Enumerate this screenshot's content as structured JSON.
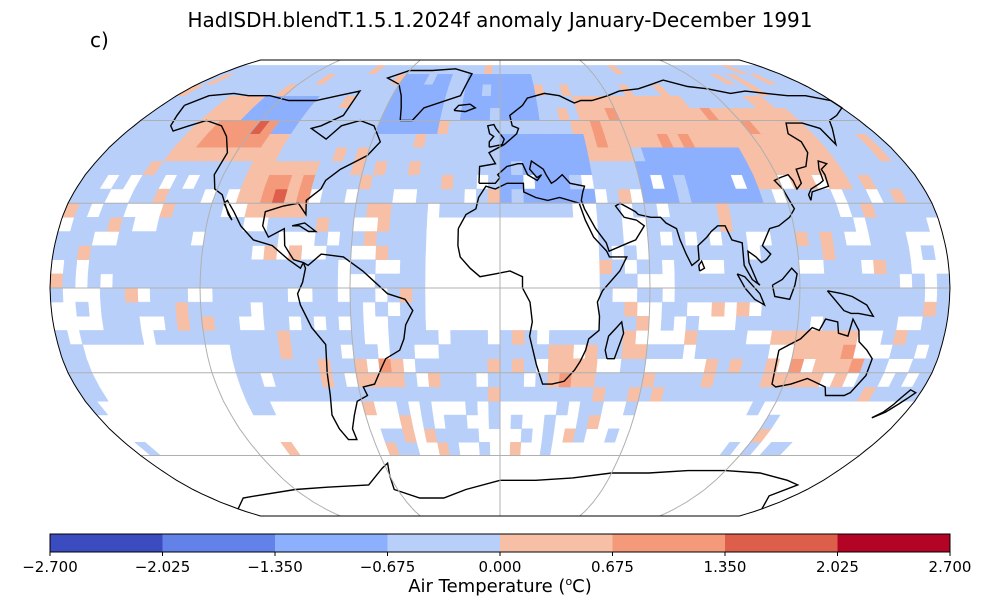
{
  "title": "HadISDH.blendT.1.5.1.2024f anomaly January-December 1991",
  "panel_label": "c)",
  "colorbar": {
    "label_prefix": "Air Temperature (",
    "label_sup": "o",
    "label_suffix": "C)",
    "ticks": [
      "−2.700",
      "−2.025",
      "−1.350",
      "−0.675",
      "0.000",
      "0.675",
      "1.350",
      "2.025",
      "2.700"
    ],
    "colors": [
      "#3b4cc0",
      "#6282ea",
      "#8db0fe",
      "#b8d0f9",
      "#f6bfa6",
      "#f49a7b",
      "#dd5f4b",
      "#b40426"
    ]
  },
  "map": {
    "projection": "robinson",
    "gridlines": true,
    "coastlines": true,
    "cell_size_deg": 5
  }
}
